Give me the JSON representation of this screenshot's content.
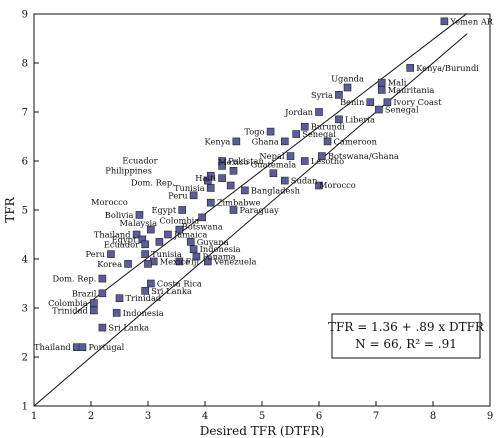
{
  "chart_data": {
    "type": "scatter",
    "xlabel": "Desired TFR (DTFR)",
    "ylabel": "TFR",
    "xlim": [
      1,
      9
    ],
    "ylim": [
      1,
      9
    ],
    "xticks": [
      "1",
      "2",
      "3",
      "4",
      "5",
      "6",
      "7",
      "8",
      "9"
    ],
    "yticks": [
      "1",
      "2",
      "3",
      "4",
      "5",
      "6",
      "7",
      "8",
      "9"
    ],
    "grid": false,
    "reference_line": {
      "name": "45-degree line",
      "from": [
        1,
        1
      ],
      "to": [
        8.6,
        8.6
      ]
    },
    "fitted_line": {
      "intercept": 1.36,
      "slope": 0.89
    },
    "annotation": [
      "TFR = 1.36 + .89 x DTFR",
      "N = 66, R² = .91"
    ],
    "marker_color": "#5b5c9a",
    "points": [
      {
        "label": "Yemen AR",
        "x": 8.2,
        "y": 8.85
      },
      {
        "label": "Kenya/Burundi",
        "x": 7.6,
        "y": 7.9
      },
      {
        "label": "Uganda",
        "x": 6.5,
        "y": 7.5
      },
      {
        "label": "Syria",
        "x": 6.35,
        "y": 7.35
      },
      {
        "label": "Mali",
        "x": 7.1,
        "y": 7.6
      },
      {
        "label": "Mauritania",
        "x": 7.1,
        "y": 7.45
      },
      {
        "label": "Benin",
        "x": 6.9,
        "y": 7.2
      },
      {
        "label": "Ivory Coast",
        "x": 7.2,
        "y": 7.2
      },
      {
        "label": "Senegal",
        "x": 7.05,
        "y": 7.05
      },
      {
        "label": "Jordan",
        "x": 6.0,
        "y": 7.0
      },
      {
        "label": "Liberia",
        "x": 6.35,
        "y": 6.85
      },
      {
        "label": "Burundi",
        "x": 5.75,
        "y": 6.7
      },
      {
        "label": "Togo",
        "x": 5.15,
        "y": 6.6
      },
      {
        "label": "Senegal",
        "x": 5.6,
        "y": 6.55
      },
      {
        "label": "Ghana",
        "x": 5.4,
        "y": 6.4
      },
      {
        "label": "Kenya",
        "x": 4.55,
        "y": 6.4
      },
      {
        "label": "Cameroon",
        "x": 6.15,
        "y": 6.4
      },
      {
        "label": "Nepal",
        "x": 5.5,
        "y": 6.1
      },
      {
        "label": "Botswana/Ghana",
        "x": 6.05,
        "y": 6.1
      },
      {
        "label": "Pakistan",
        "x": 4.3,
        "y": 6.0
      },
      {
        "label": "Lesotho",
        "x": 5.75,
        "y": 6.0
      },
      {
        "label": "Mexico",
        "x": 4.5,
        "y": 5.8
      },
      {
        "label": "Guatemala",
        "x": 5.2,
        "y": 5.75
      },
      {
        "label": "Haiti",
        "x": 4.3,
        "y": 5.65
      },
      {
        "label": "Sudan",
        "x": 5.4,
        "y": 5.6
      },
      {
        "label": "Dom. Rep.",
        "x": 4.45,
        "y": 5.5
      },
      {
        "label": "Morocco",
        "x": 6.0,
        "y": 5.5
      },
      {
        "label": "Tunisia",
        "x": 4.1,
        "y": 5.45
      },
      {
        "label": "Bangladesh",
        "x": 4.7,
        "y": 5.4
      },
      {
        "label": "Peru",
        "x": 3.8,
        "y": 5.3
      },
      {
        "label": "Zimbabwe",
        "x": 4.1,
        "y": 5.15
      },
      {
        "label": "Egypt",
        "x": 3.6,
        "y": 5.0
      },
      {
        "label": "Paraguay",
        "x": 4.5,
        "y": 5.0
      },
      {
        "label": "Botswana",
        "x": 3.95,
        "y": 4.85
      },
      {
        "label": "Bolivia",
        "x": 2.85,
        "y": 4.9
      },
      {
        "label": "Colombia",
        "x": 3.55,
        "y": 4.6
      },
      {
        "label": "Jamaica",
        "x": 3.35,
        "y": 4.5
      },
      {
        "label": "Thailand",
        "x": 2.8,
        "y": 4.5
      },
      {
        "label": "Guyana",
        "x": 3.75,
        "y": 4.35
      },
      {
        "label": "Egypt",
        "x": 2.9,
        "y": 4.4
      },
      {
        "label": "Indonesia",
        "x": 3.8,
        "y": 4.2
      },
      {
        "label": "Ecuador",
        "x": 2.95,
        "y": 4.3
      },
      {
        "label": "Panama",
        "x": 3.85,
        "y": 4.05
      },
      {
        "label": "Tunisia",
        "x": 2.95,
        "y": 4.1
      },
      {
        "label": "Peru",
        "x": 2.35,
        "y": 4.1
      },
      {
        "label": "Mexico",
        "x": 3.1,
        "y": 3.95
      },
      {
        "label": "Fiji",
        "x": 3.55,
        "y": 3.95
      },
      {
        "label": "Venezuela",
        "x": 4.05,
        "y": 3.95
      },
      {
        "label": "Sri Lanka",
        "x": 3.0,
        "y": 3.9
      },
      {
        "label": "Korea",
        "x": 2.65,
        "y": 3.9
      },
      {
        "label": "Dom. Rep.",
        "x": 2.2,
        "y": 3.6
      },
      {
        "label": "Costa Rica",
        "x": 3.05,
        "y": 3.5
      },
      {
        "label": "Brazil",
        "x": 2.2,
        "y": 3.3
      },
      {
        "label": "Sri Lanka",
        "x": 2.95,
        "y": 3.35
      },
      {
        "label": "Colombia",
        "x": 2.05,
        "y": 3.1
      },
      {
        "label": "Trinidad",
        "x": 2.5,
        "y": 3.2
      },
      {
        "label": "Trinidad",
        "x": 2.05,
        "y": 2.95
      },
      {
        "label": "Indonesia",
        "x": 2.45,
        "y": 2.9
      },
      {
        "label": "Sri Lanka",
        "x": 2.2,
        "y": 2.6
      },
      {
        "label": "Thailand",
        "x": 1.75,
        "y": 2.2
      },
      {
        "label": "Portugal",
        "x": 1.85,
        "y": 2.2
      },
      {
        "label": "Morocco",
        "x": 4.05,
        "y": 5.6
      },
      {
        "label": "Ecuador",
        "x": 4.3,
        "y": 5.9
      },
      {
        "label": "Philippines",
        "x": 4.1,
        "y": 5.7
      },
      {
        "label": "Malaysia",
        "x": 3.05,
        "y": 4.6
      },
      {
        "label": "Guatemala",
        "x": 3.2,
        "y": 4.35
      }
    ]
  },
  "labels": [
    {
      "text": "Yemen AR",
      "i": 0,
      "side": "r"
    },
    {
      "text": "Kenya/Burundi",
      "i": 1,
      "side": "r"
    },
    {
      "text": "Uganda",
      "i": 2,
      "side": "a"
    },
    {
      "text": "Syria",
      "i": 3,
      "side": "l"
    },
    {
      "text": "Mali",
      "i": 4,
      "side": "r"
    },
    {
      "text": "Mauritania",
      "i": 5,
      "side": "r"
    },
    {
      "text": "Benin",
      "i": 6,
      "side": "l"
    },
    {
      "text": "Ivory Coast",
      "i": 7,
      "side": "r"
    },
    {
      "text": "Senegal",
      "i": 8,
      "side": "r"
    },
    {
      "text": "Jordan",
      "i": 9,
      "side": "l"
    },
    {
      "text": "Liberia",
      "i": 10,
      "side": "r"
    },
    {
      "text": "Burundi",
      "i": 11,
      "side": "r"
    },
    {
      "text": "Togo",
      "i": 12,
      "side": "l"
    },
    {
      "text": "Senegal",
      "i": 13,
      "side": "r"
    },
    {
      "text": "Ghana",
      "i": 14,
      "side": "l"
    },
    {
      "text": "Kenya",
      "i": 15,
      "side": "l"
    },
    {
      "text": "Cameroon",
      "i": 16,
      "side": "r"
    },
    {
      "text": "Nepal",
      "i": 17,
      "side": "l"
    },
    {
      "text": "Botswana/Ghana",
      "i": 18,
      "side": "r"
    },
    {
      "text": "Pakistan",
      "i": 19,
      "side": "r"
    },
    {
      "text": "Lesotho",
      "i": 20,
      "side": "r"
    },
    {
      "text": "Mexico",
      "i": 21,
      "side": "a"
    },
    {
      "text": "Guatemala",
      "i": 22,
      "side": "a"
    },
    {
      "text": "Haiti",
      "i": 23,
      "side": "l"
    },
    {
      "text": "Sudan",
      "i": 24,
      "side": "r"
    },
    {
      "text": "Dom. Rep.",
      "i": 25,
      "side": "free",
      "tx": 2.7,
      "ty": 5.5
    },
    {
      "text": "Morocco",
      "i": 26,
      "side": "free",
      "tx": 6.0,
      "ty": 5.45
    },
    {
      "text": "Tunisia",
      "i": 27,
      "side": "l"
    },
    {
      "text": "Bangladesh",
      "i": 28,
      "side": "r"
    },
    {
      "text": "Peru",
      "i": 29,
      "side": "l"
    },
    {
      "text": "Zimbabwe",
      "i": 30,
      "side": "r"
    },
    {
      "text": "Egypt",
      "i": 31,
      "side": "l"
    },
    {
      "text": "Paraguay",
      "i": 32,
      "side": "r"
    },
    {
      "text": "Botswana",
      "i": 33,
      "side": "b"
    },
    {
      "text": "Bolivia",
      "i": 34,
      "side": "l"
    },
    {
      "text": "Colombia",
      "i": 35,
      "side": "a"
    },
    {
      "text": "Jamaica",
      "i": 36,
      "side": "r"
    },
    {
      "text": "Thailand",
      "i": 37,
      "side": "l"
    },
    {
      "text": "Guyana",
      "i": 38,
      "side": "r"
    },
    {
      "text": "Egypt",
      "i": 39,
      "side": "l"
    },
    {
      "text": "Indonesia",
      "i": 40,
      "side": "r"
    },
    {
      "text": "Ecuador",
      "i": 41,
      "side": "l"
    },
    {
      "text": "Panama",
      "i": 42,
      "side": "r"
    },
    {
      "text": "Tunisia",
      "i": 43,
      "side": "r"
    },
    {
      "text": "Peru",
      "i": 44,
      "side": "l"
    },
    {
      "text": "Mexico",
      "i": 45,
      "side": "r"
    },
    {
      "text": "Fiji",
      "i": 46,
      "side": "r"
    },
    {
      "text": "Venezuela",
      "i": 47,
      "side": "r"
    },
    {
      "text": "Korea",
      "i": 49,
      "side": "l"
    },
    {
      "text": "Dom. Rep.",
      "i": 50,
      "side": "l"
    },
    {
      "text": "Costa Rica",
      "i": 51,
      "side": "r"
    },
    {
      "text": "Brazil",
      "i": 52,
      "side": "l"
    },
    {
      "text": "Sri Lanka",
      "i": 53,
      "side": "r"
    },
    {
      "text": "Colombia",
      "i": 54,
      "side": "l"
    },
    {
      "text": "Trinidad",
      "i": 55,
      "side": "r"
    },
    {
      "text": "Trinidad",
      "i": 56,
      "side": "l"
    },
    {
      "text": "Indonesia",
      "i": 57,
      "side": "r"
    },
    {
      "text": "Sri Lanka",
      "i": 58,
      "side": "r"
    },
    {
      "text": "Thailand",
      "i": 59,
      "side": "l"
    },
    {
      "text": "Portugal",
      "i": 60,
      "side": "r"
    },
    {
      "text": "Ecuador",
      "i": 62,
      "side": "free",
      "tx": 2.55,
      "ty": 5.95
    },
    {
      "text": "Philippines",
      "i": 63,
      "side": "free",
      "tx": 2.25,
      "ty": 5.75
    },
    {
      "text": "Malaysia",
      "i": 64,
      "side": "free",
      "tx": 2.5,
      "ty": 4.67
    },
    {
      "text": "Morocco",
      "i": 61,
      "side": "free",
      "tx": 2.0,
      "ty": 5.1
    }
  ]
}
